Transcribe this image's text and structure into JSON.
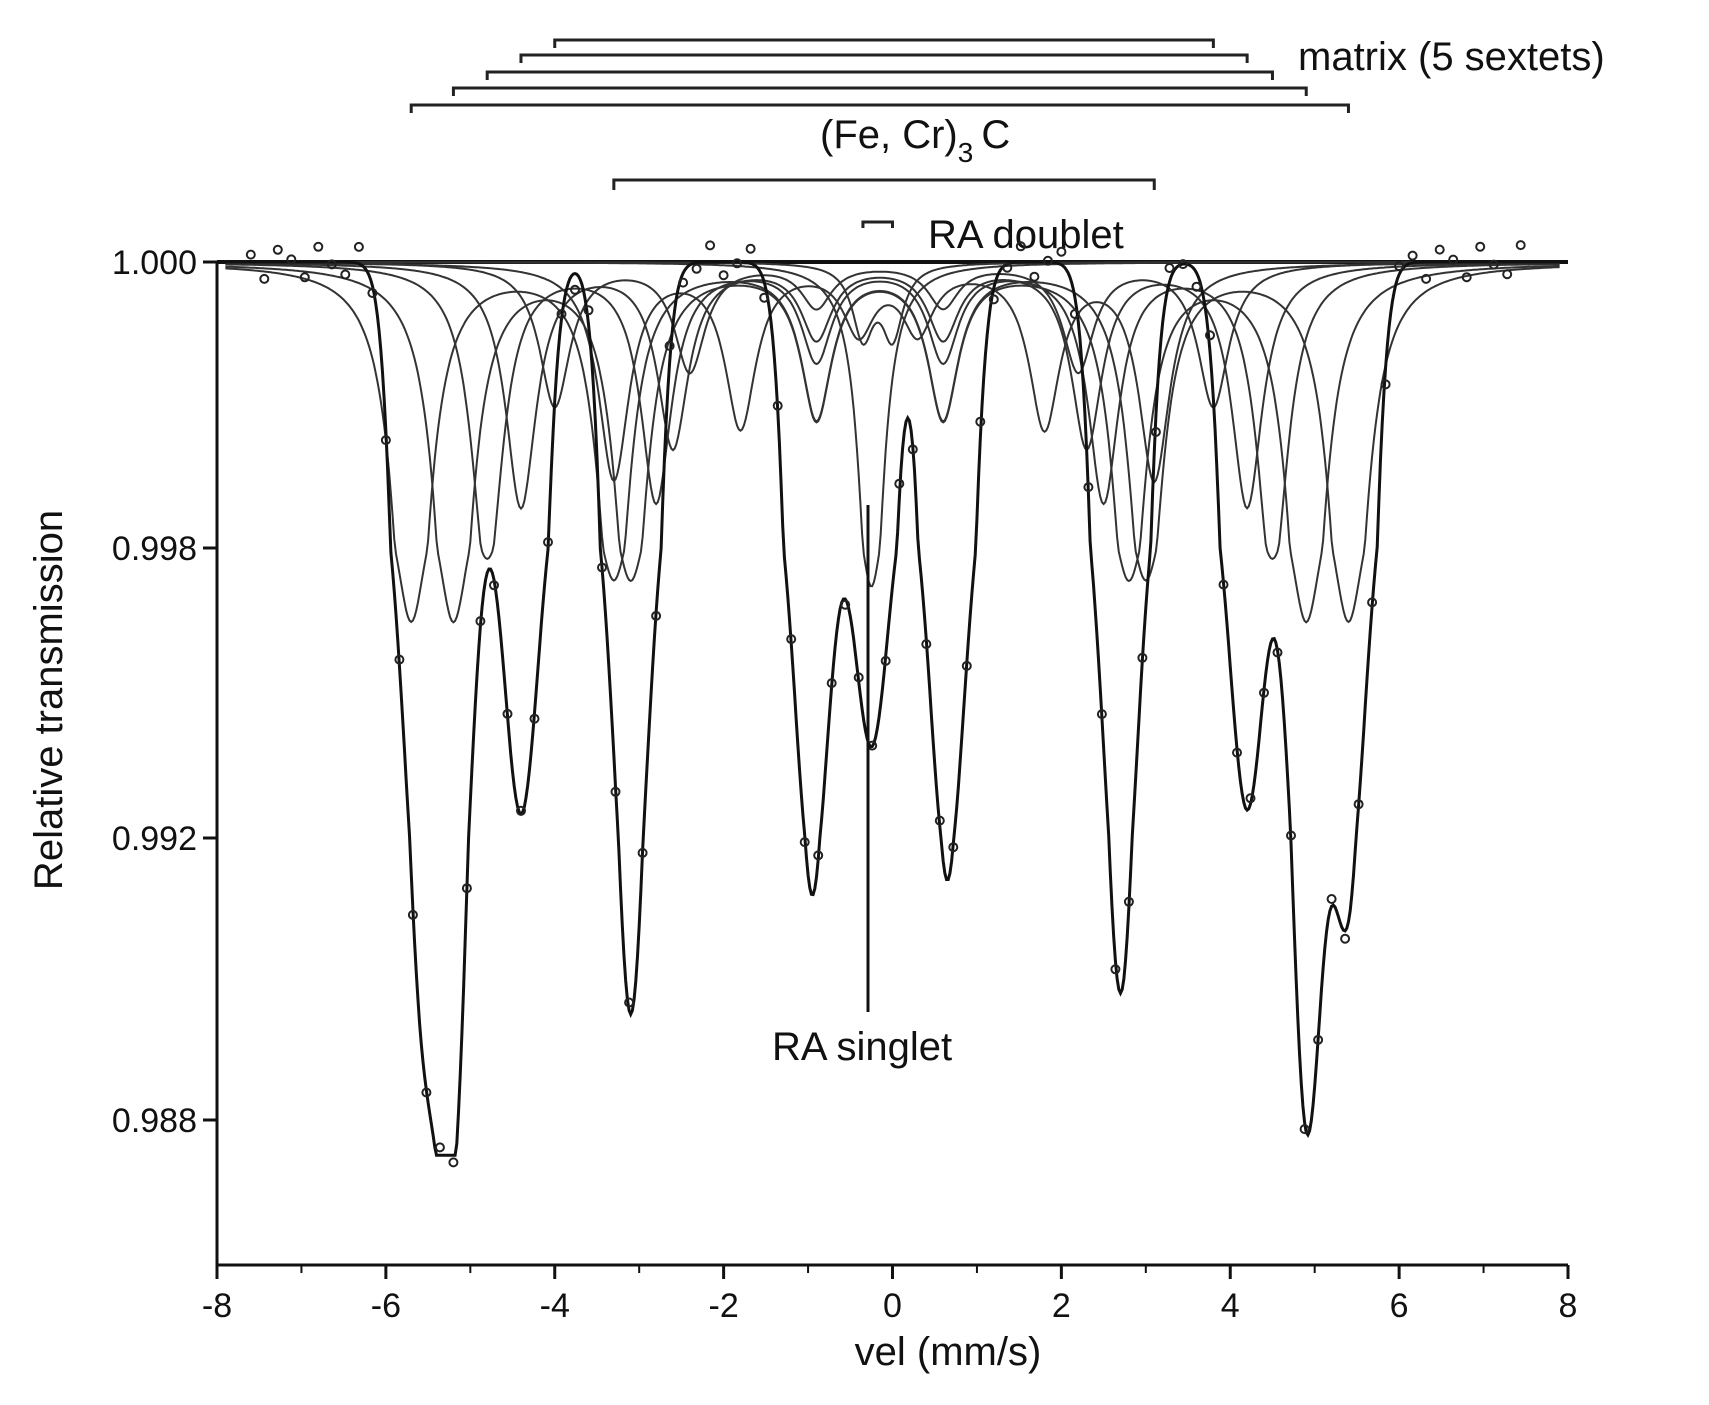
{
  "chart_data": {
    "type": "line",
    "xlabel": "vel (mm/s)",
    "ylabel": "Relative transmission",
    "xlim": [
      -8,
      8
    ],
    "ylim": [
      0.984,
      1.0
    ],
    "x_ticks": [
      -8,
      -6,
      -4,
      -2,
      0,
      2,
      4,
      6,
      8
    ],
    "x_tick_labels": [
      "-8",
      "-6",
      "-4",
      "-2",
      "0",
      "2",
      "4",
      "6",
      "8"
    ],
    "y_ticks": [
      1.0,
      0.998,
      0.992,
      0.988
    ],
    "y_tick_labels": [
      "1.000",
      "0.998",
      "0.992",
      "0.988"
    ],
    "grid": false,
    "annotations": {
      "matrix": "matrix (5 sextets)",
      "carbide_main": "(Fe, Cr)",
      "carbide_sub": "3",
      "carbide_end": "C",
      "ra_doublet": "RA doublet",
      "ra_singlet": "RA singlet"
    },
    "components": {
      "matrix_sextets": [
        {
          "lines": [
            -5.7,
            -3.3,
            -0.9,
            0.6,
            3.0,
            5.4
          ],
          "depth": 0.0035,
          "width": 0.22
        },
        {
          "lines": [
            -5.2,
            -3.1,
            -0.9,
            0.6,
            2.8,
            4.9
          ],
          "depth": 0.0035,
          "width": 0.22
        },
        {
          "lines": [
            -4.8,
            -2.8,
            -0.9,
            0.6,
            2.5,
            4.5
          ],
          "depth": 0.0022,
          "width": 0.22
        },
        {
          "lines": [
            -4.4,
            -2.6,
            -0.9,
            0.6,
            2.3,
            4.2
          ],
          "depth": 0.0017,
          "width": 0.22
        },
        {
          "lines": [
            -4.0,
            -2.4,
            -0.9,
            0.6,
            2.2,
            3.8
          ],
          "depth": 0.001,
          "width": 0.22
        }
      ],
      "carbide_sextet": {
        "lines": [
          -3.3,
          -1.8,
          -0.4,
          0.3,
          1.8,
          3.1
        ],
        "depth": 0.0015,
        "width": 0.22
      },
      "ra_doublet": {
        "lines": [
          -0.35,
          0.0
        ],
        "depth": 0.0005,
        "width": 0.15
      },
      "ra_singlet": {
        "center": -0.25,
        "depth": 0.0028,
        "width": 0.16
      }
    },
    "envelope_minima": [
      {
        "x": -5.6,
        "y": 0.9909
      },
      {
        "x": -5.2,
        "y": 0.9882
      },
      {
        "x": -4.4,
        "y": 0.9925
      },
      {
        "x": -3.1,
        "y": 0.9895
      },
      {
        "x": -0.95,
        "y": 0.9912
      },
      {
        "x": -0.25,
        "y": 0.9939
      },
      {
        "x": 0.65,
        "y": 0.9914
      },
      {
        "x": 2.7,
        "y": 0.9898
      },
      {
        "x": 4.2,
        "y": 0.9926
      },
      {
        "x": 4.9,
        "y": 0.9882
      },
      {
        "x": 5.4,
        "y": 0.9913
      }
    ]
  }
}
